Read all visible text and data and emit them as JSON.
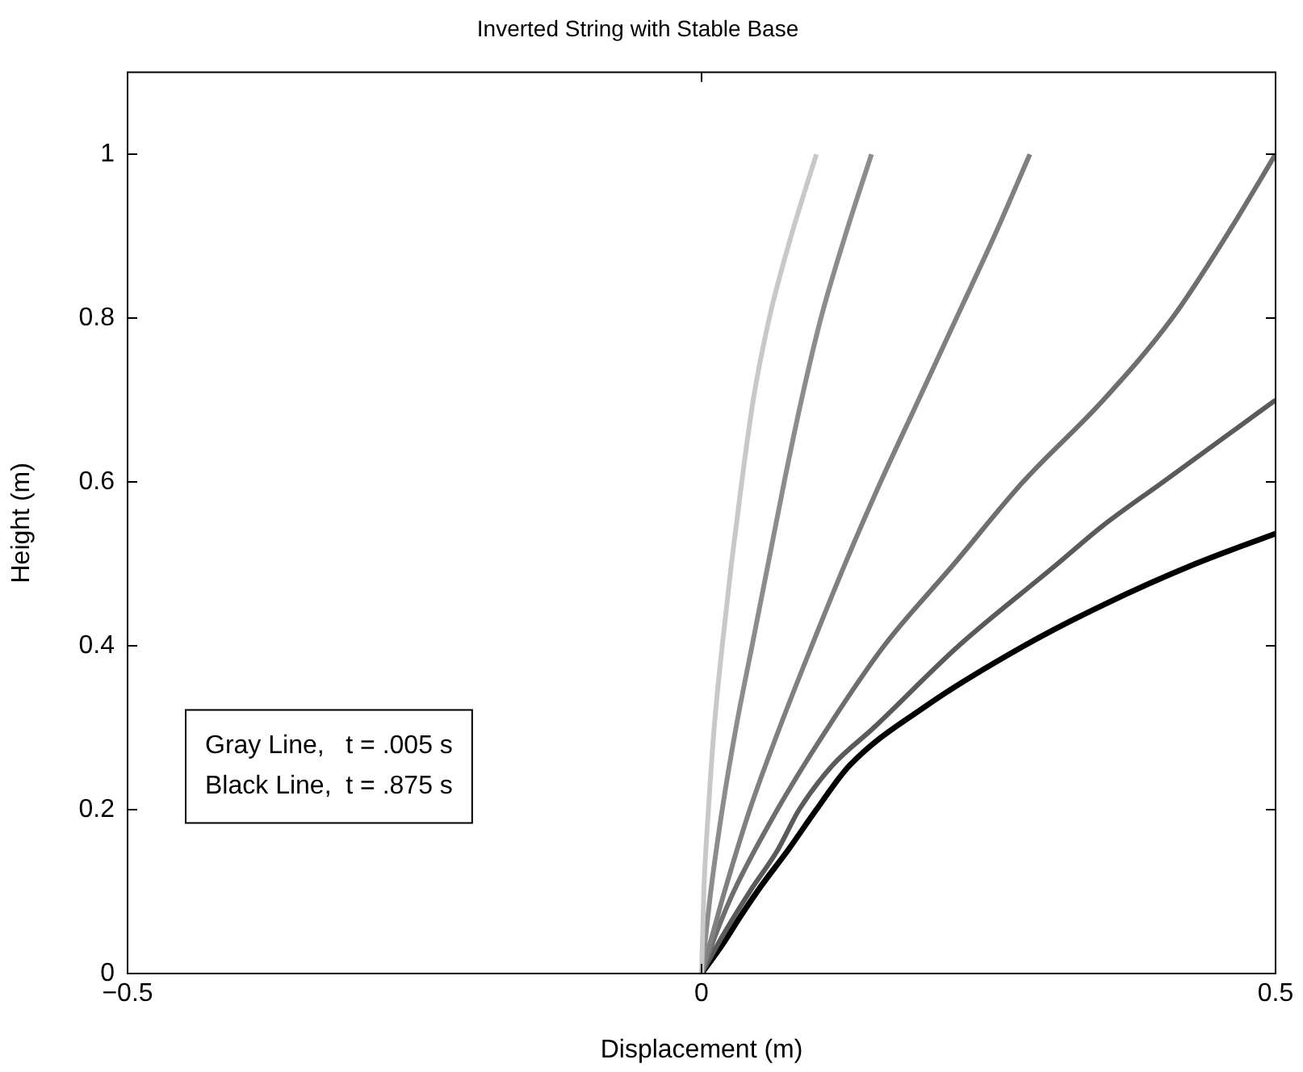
{
  "chart_data": {
    "type": "line",
    "title": "Inverted String with Stable Base",
    "xlabel": "Displacement (m)",
    "ylabel": "Height (m)",
    "xlim": [
      -0.5,
      0.5
    ],
    "xticks": [
      {
        "value": -0.5,
        "label": "−0.5"
      },
      0,
      0.5
    ],
    "ylim": [
      0,
      1.1
    ],
    "yticks": [
      0,
      0.2,
      0.4,
      0.6,
      0.8,
      1
    ],
    "grid": false,
    "legend": false,
    "marker": "none",
    "line_style": "solid",
    "annotations": [
      "Gray Line,   t = .005 s",
      "Black Line,  t = .875 s"
    ],
    "series": [
      {
        "color": "#c8c8c8",
        "x": [
          0,
          0.001,
          0.002,
          0.006,
          0.011,
          0.018,
          0.026,
          0.035,
          0.045,
          0.059,
          0.078,
          0.1
        ],
        "values": [
          0,
          0.05,
          0.1,
          0.2,
          0.3,
          0.4,
          0.5,
          0.6,
          0.7,
          0.8,
          0.9,
          1
        ]
      },
      {
        "color": "#8c8c8c",
        "x": [
          0,
          0.004,
          0.008,
          0.018,
          0.03,
          0.044,
          0.058,
          0.072,
          0.087,
          0.104,
          0.125,
          0.148
        ],
        "values": [
          0,
          0.05,
          0.1,
          0.2,
          0.3,
          0.4,
          0.5,
          0.6,
          0.7,
          0.8,
          0.9,
          1
        ]
      },
      {
        "color": "#808080",
        "x": [
          0,
          0.01,
          0.02,
          0.042,
          0.068,
          0.096,
          0.125,
          0.156,
          0.189,
          0.222,
          0.255,
          0.286
        ],
        "values": [
          0,
          0.05,
          0.1,
          0.2,
          0.3,
          0.4,
          0.5,
          0.6,
          0.7,
          0.8,
          0.9,
          1
        ]
      },
      {
        "color": "#6e6e6e",
        "x": [
          0,
          0.013,
          0.028,
          0.066,
          0.11,
          0.159,
          0.22,
          0.28,
          0.35,
          0.41,
          0.457,
          0.5
        ],
        "values": [
          0,
          0.05,
          0.1,
          0.2,
          0.3,
          0.4,
          0.5,
          0.6,
          0.7,
          0.8,
          0.9,
          1
        ]
      },
      {
        "color": "#5a5a5a",
        "x": [
          0,
          0.02,
          0.042,
          0.066,
          0.085,
          0.114,
          0.15,
          0.224,
          0.31,
          0.349,
          0.402,
          0.5
        ],
        "values": [
          0,
          0.05,
          0.1,
          0.15,
          0.2,
          0.254,
          0.3,
          0.4,
          0.5,
          0.546,
          0.6,
          0.7
        ]
      },
      {
        "color": "#000000",
        "x": [
          0,
          0.018,
          0.034,
          0.052,
          0.075,
          0.1,
          0.129,
          0.196,
          0.281,
          0.35,
          0.43,
          0.5
        ],
        "values": [
          0,
          0.035,
          0.07,
          0.107,
          0.15,
          0.2,
          0.254,
          0.327,
          0.4,
          0.45,
          0.5,
          0.537
        ]
      }
    ]
  }
}
